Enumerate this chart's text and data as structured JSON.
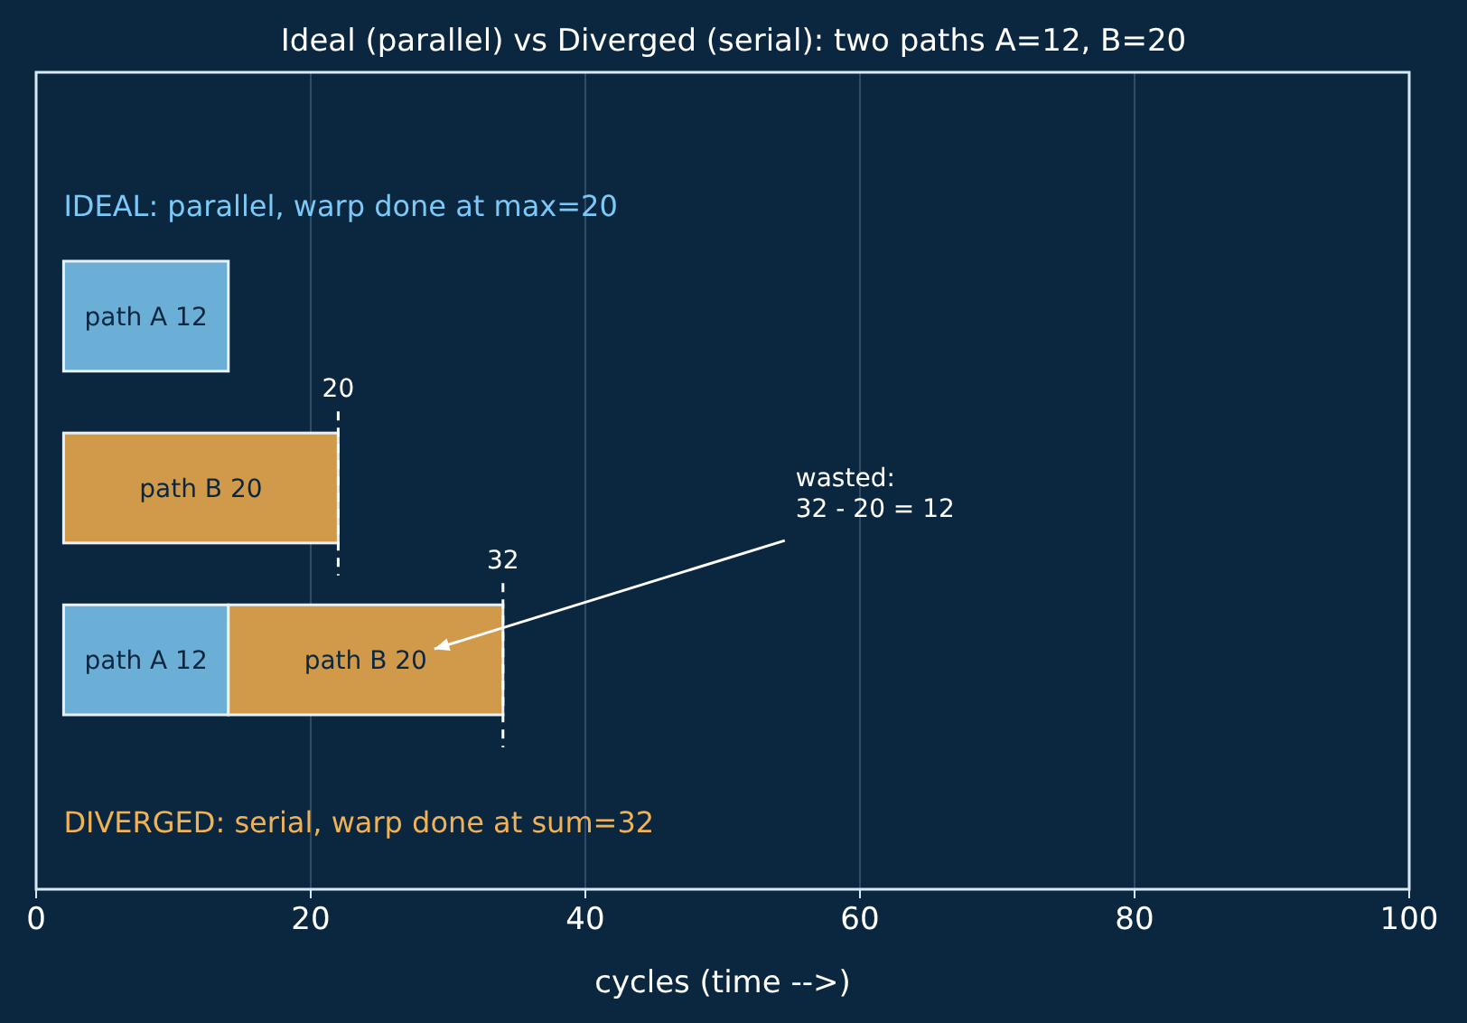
{
  "chart_data": {
    "type": "bar",
    "orientation": "horizontal",
    "title": "Ideal (parallel) vs Diverged (serial): two paths A=12, B=20",
    "xlabel": "cycles (time -->)",
    "categories": [
      null,
      null,
      null
    ],
    "series": [
      {
        "color": "#6baed6",
        "base": [
          2,
          null,
          2
        ],
        "values": [
          12,
          null,
          12
        ],
        "value_labels": [
          "path A 12",
          null,
          "path A 12"
        ]
      },
      {
        "color": "#d19a4a",
        "base": [
          null,
          2,
          14
        ],
        "values": [
          null,
          20,
          20
        ],
        "value_labels": [
          null,
          "path B 20",
          "path B 20"
        ]
      }
    ],
    "xlim": [
      0,
      100
    ],
    "xticks": [
      0,
      20,
      40,
      60,
      80,
      100
    ],
    "grid": "x",
    "ref_lines": [
      {
        "axis": "x",
        "value": 22,
        "line_style": "dashed",
        "color": "#ffffff"
      },
      {
        "axis": "x",
        "value": 34,
        "line_style": "dashed",
        "color": "#ffffff"
      }
    ],
    "annotations": [
      "IDEAL: parallel, warp done at max=20",
      "DIVERGED: serial, warp done at sum=32",
      "wasted:\n32 - 20 = 12",
      "20",
      "32"
    ]
  }
}
